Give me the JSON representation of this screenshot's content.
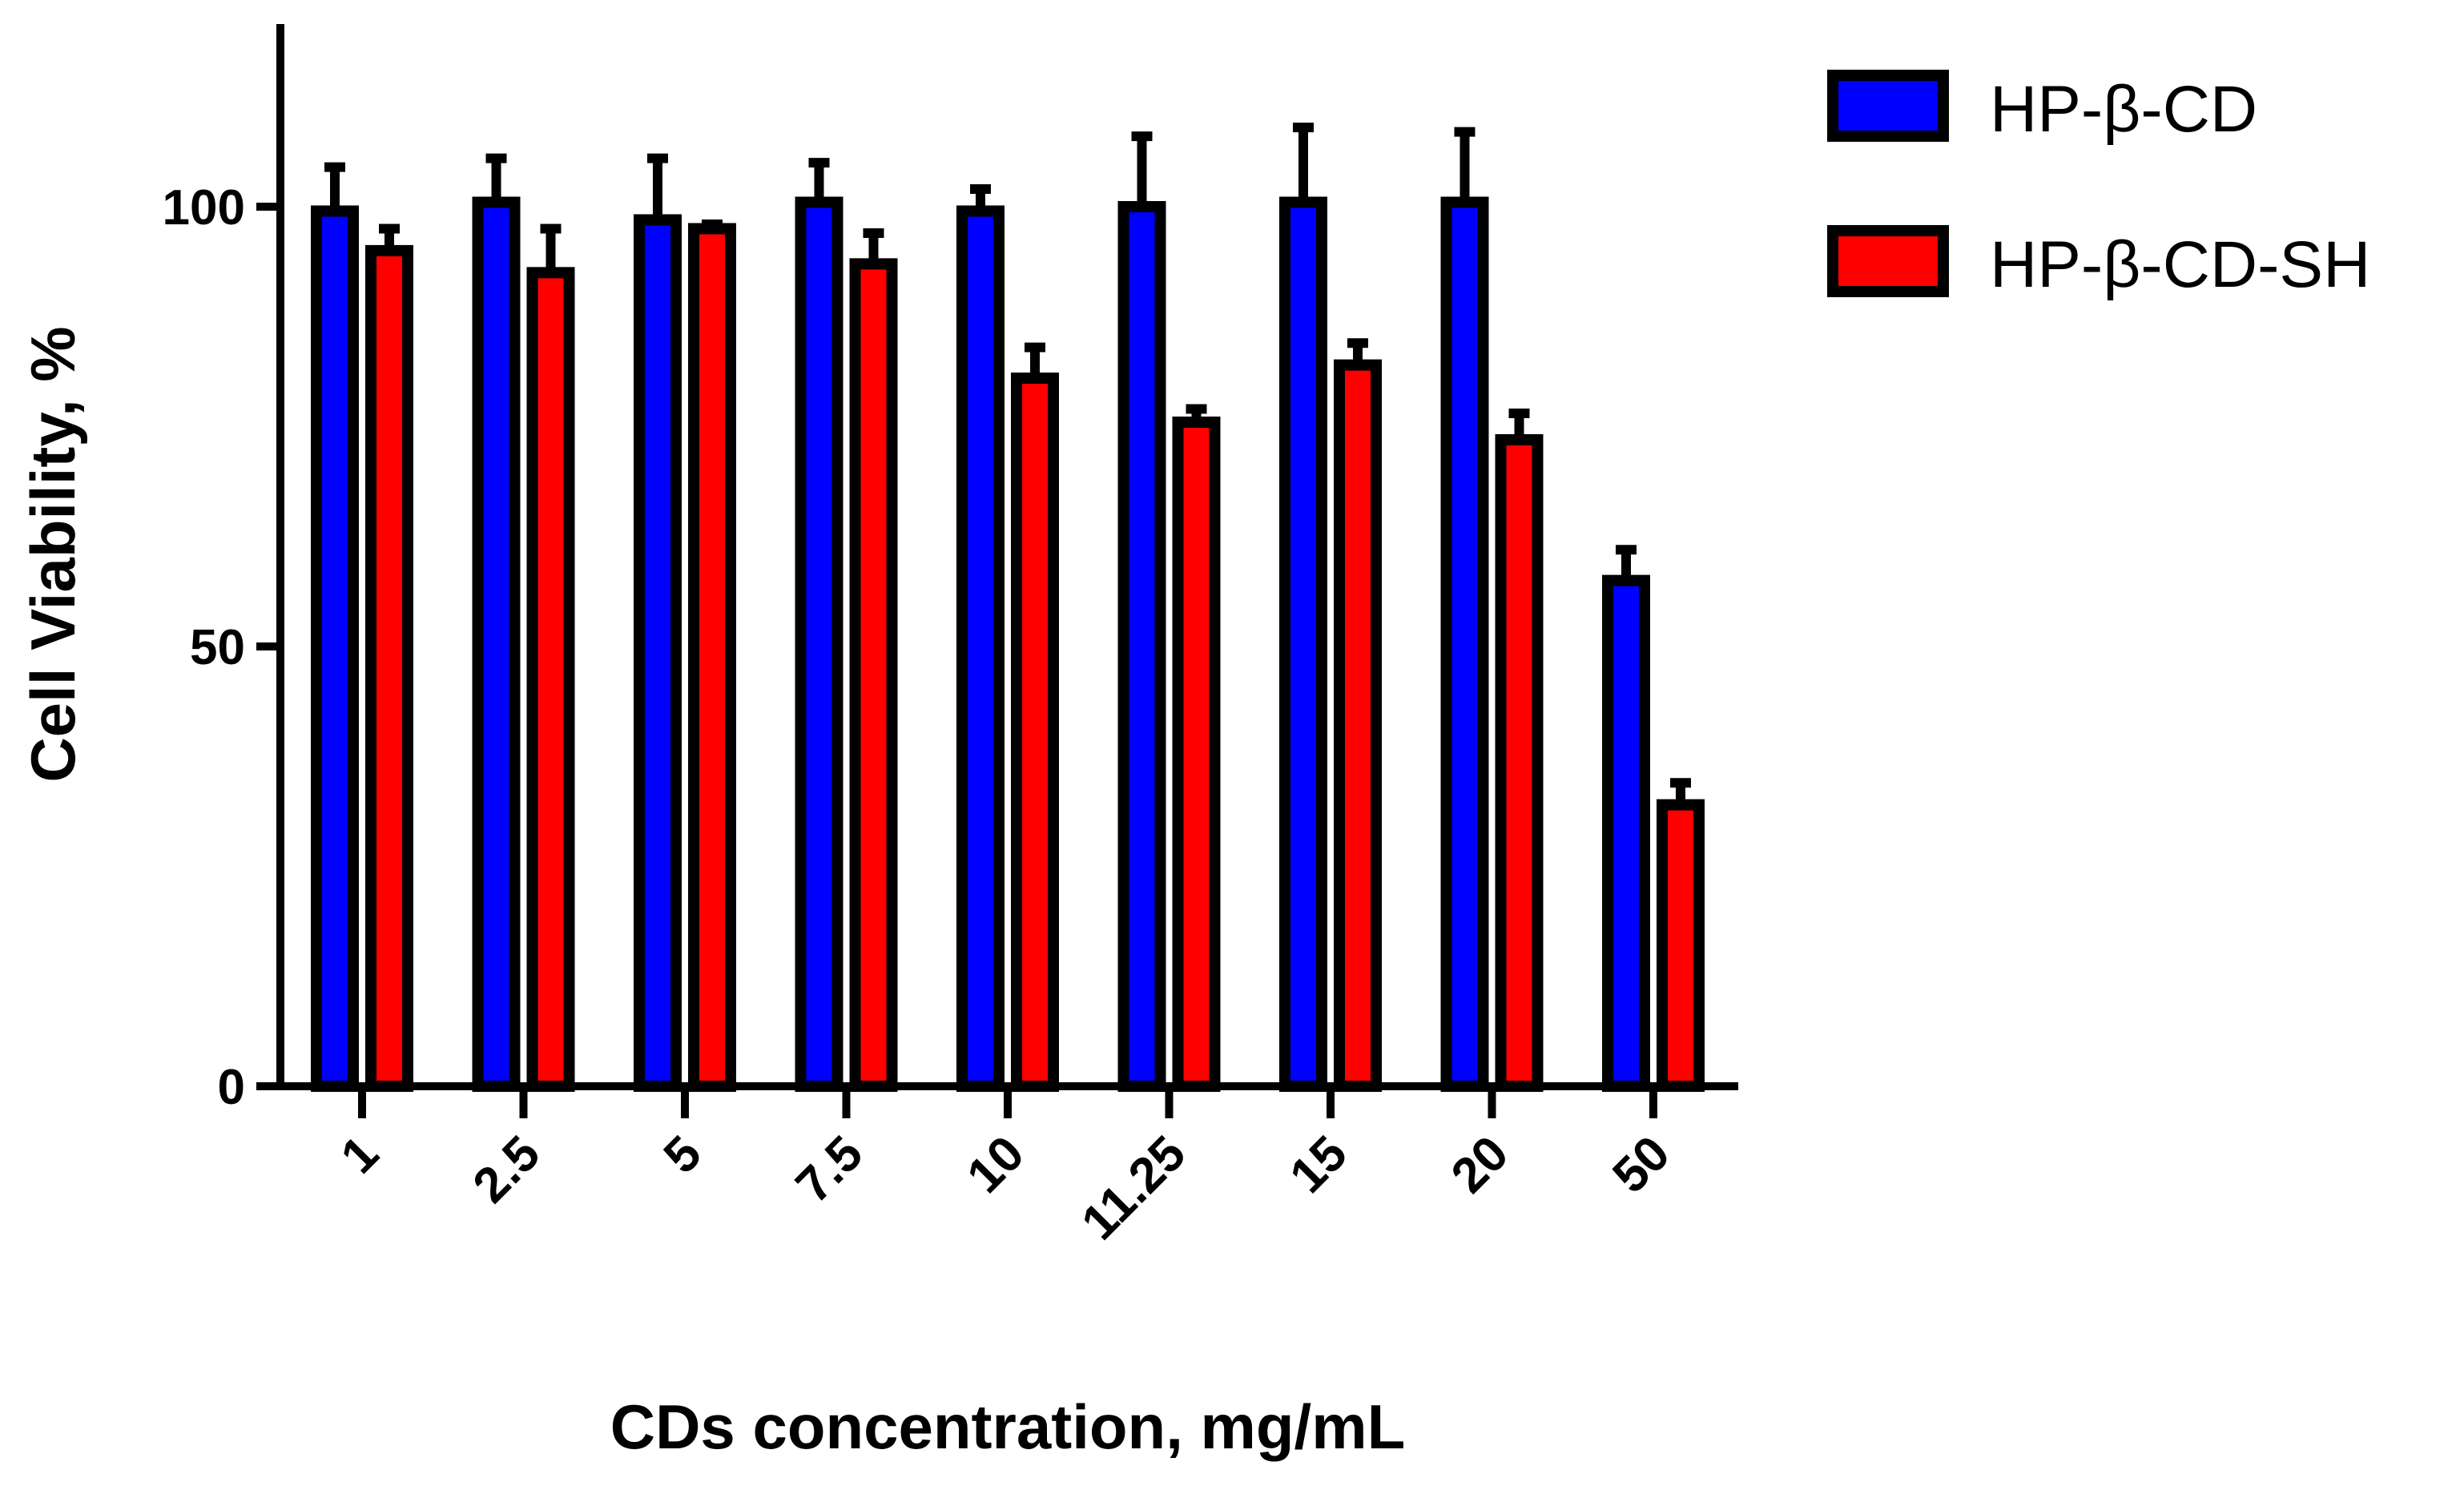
{
  "chart_data": {
    "type": "bar",
    "title": "",
    "xlabel": "CDs concentration, mg/mL",
    "ylabel": "Cell Viability, %",
    "categories": [
      "1",
      "2.5",
      "5",
      "7.5",
      "10",
      "11.25",
      "15",
      "20",
      "50"
    ],
    "ylim": [
      0,
      122
    ],
    "yticks": [
      "0",
      "50",
      "100"
    ],
    "grid": false,
    "legend_position": "top-right",
    "series": [
      {
        "name": "HP-β-CD",
        "color": "#0000ff",
        "values": [
          99.5,
          100.5,
          98.5,
          100.5,
          99.5,
          100,
          100.5,
          100.5,
          57.5
        ],
        "errors": [
          5,
          5,
          7,
          4.5,
          2.5,
          8,
          8.5,
          8,
          3.5
        ]
      },
      {
        "name": "HP-β-CD-SH",
        "color": "#ff0000",
        "values": [
          95,
          92.5,
          97.5,
          93.5,
          80.5,
          75.5,
          82,
          73.5,
          32
        ],
        "errors": [
          2.5,
          5,
          0.5,
          3.5,
          3.5,
          1.5,
          2.5,
          3,
          2.5
        ]
      }
    ]
  }
}
